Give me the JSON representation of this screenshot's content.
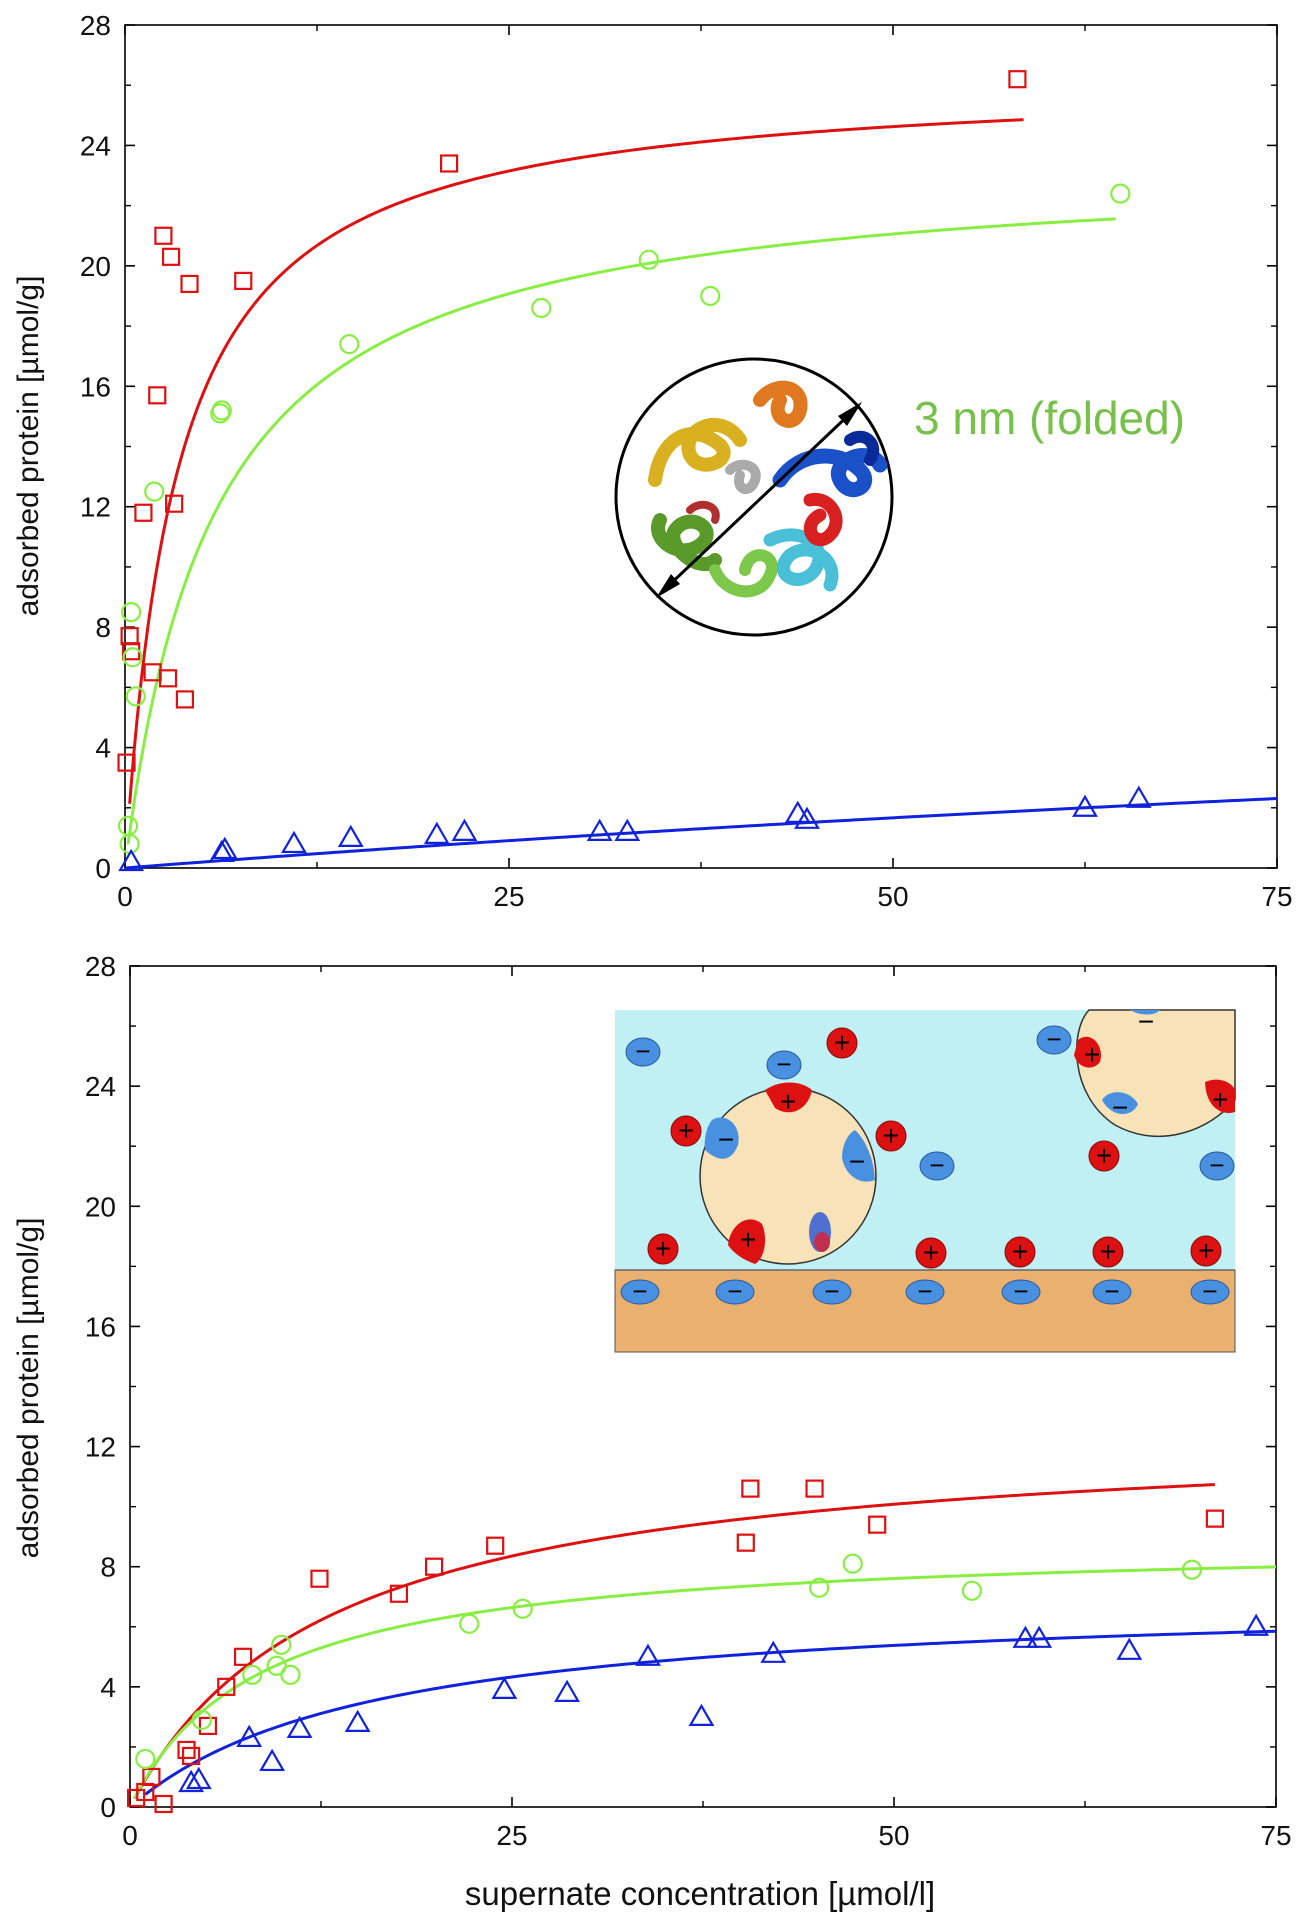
{
  "chart_data": [
    {
      "type": "scatter",
      "panel": "top",
      "ylabel": "adsorbed protein [µmol/g]",
      "xlabel": "",
      "xlim": [
        0,
        75
      ],
      "ylim": [
        0,
        28
      ],
      "xticks": [
        0,
        25,
        50,
        75
      ],
      "yticks": [
        0,
        4,
        8,
        12,
        16,
        20,
        24,
        28
      ],
      "grid": false,
      "series": [
        {
          "name": "red squares",
          "color": "#dd1111",
          "marker": "square",
          "points": [
            [
              0.1,
              3.5
            ],
            [
              0.3,
              7.7
            ],
            [
              0.4,
              7.2
            ],
            [
              1.2,
              11.8
            ],
            [
              1.8,
              6.5
            ],
            [
              2.1,
              15.7
            ],
            [
              2.5,
              21.0
            ],
            [
              2.8,
              6.3
            ],
            [
              3.0,
              20.3
            ],
            [
              3.2,
              12.1
            ],
            [
              3.9,
              5.6
            ],
            [
              4.2,
              19.4
            ],
            [
              7.7,
              19.5
            ],
            [
              21.1,
              23.4
            ],
            [
              58.1,
              26.2
            ]
          ],
          "fit": {
            "model": "langmuir",
            "qmax": 26.3,
            "K": 3.4,
            "x_range": [
              0.3,
              58.5
            ]
          }
        },
        {
          "name": "green circles",
          "color": "#88ee44",
          "marker": "circle",
          "points": [
            [
              0.2,
              1.4
            ],
            [
              0.3,
              0.8
            ],
            [
              0.4,
              8.5
            ],
            [
              0.5,
              7.0
            ],
            [
              0.7,
              5.7
            ],
            [
              1.9,
              12.5
            ],
            [
              6.2,
              15.1
            ],
            [
              6.3,
              15.2
            ],
            [
              14.6,
              17.4
            ],
            [
              27.1,
              18.6
            ],
            [
              34.1,
              20.2
            ],
            [
              38.1,
              19.0
            ],
            [
              64.8,
              22.4
            ]
          ],
          "fit": {
            "model": "langmuir",
            "qmax": 23.5,
            "K": 5.8,
            "x_range": [
              0.2,
              64.5
            ]
          }
        },
        {
          "name": "blue triangles",
          "color": "#1122dd",
          "marker": "triangle",
          "points": [
            [
              0.4,
              0.2
            ],
            [
              6.3,
              0.5
            ],
            [
              6.5,
              0.6
            ],
            [
              11.0,
              0.8
            ],
            [
              14.7,
              1.0
            ],
            [
              20.3,
              1.1
            ],
            [
              22.1,
              1.2
            ],
            [
              30.9,
              1.2
            ],
            [
              32.7,
              1.2
            ],
            [
              43.8,
              1.8
            ],
            [
              44.4,
              1.6
            ],
            [
              62.5,
              2.0
            ],
            [
              66.0,
              2.3
            ]
          ],
          "fit": {
            "model": "langmuir",
            "qmax": 10.0,
            "K": 250,
            "x_range": [
              0,
              75
            ]
          }
        }
      ],
      "annotation": {
        "text": "3 nm (folded)",
        "color": "#77c04a"
      }
    },
    {
      "type": "scatter",
      "panel": "bottom",
      "ylabel": "adsorbed protein [µmol/g]",
      "xlabel": "supernate concentration [µmol/l]",
      "xlim": [
        0,
        75
      ],
      "ylim": [
        0,
        28
      ],
      "xticks": [
        0,
        25,
        50,
        75
      ],
      "yticks": [
        0,
        4,
        8,
        12,
        16,
        20,
        24,
        28
      ],
      "grid": false,
      "series": [
        {
          "name": "red squares",
          "color": "#dd1111",
          "marker": "square",
          "points": [
            [
              0.4,
              0.3
            ],
            [
              1.0,
              0.5
            ],
            [
              1.4,
              1.0
            ],
            [
              2.2,
              0.1
            ],
            [
              3.7,
              1.9
            ],
            [
              4.0,
              1.7
            ],
            [
              5.1,
              2.7
            ],
            [
              6.3,
              4.0
            ],
            [
              7.4,
              5.0
            ],
            [
              12.4,
              7.6
            ],
            [
              17.6,
              7.1
            ],
            [
              19.9,
              8.0
            ],
            [
              23.9,
              8.7
            ],
            [
              40.3,
              8.8
            ],
            [
              40.6,
              10.6
            ],
            [
              44.8,
              10.6
            ],
            [
              48.9,
              9.4
            ],
            [
              71.0,
              9.6
            ]
          ],
          "fit": {
            "model": "langmuir",
            "qmax": 12.7,
            "K": 13.0,
            "x_range": [
              0.3,
              71.0
            ]
          }
        },
        {
          "name": "green circles",
          "color": "#88ee44",
          "marker": "circle",
          "points": [
            [
              1.0,
              1.6
            ],
            [
              4.7,
              2.9
            ],
            [
              8.0,
              4.4
            ],
            [
              9.6,
              4.7
            ],
            [
              9.9,
              5.4
            ],
            [
              10.5,
              4.4
            ],
            [
              22.2,
              6.1
            ],
            [
              25.7,
              6.6
            ],
            [
              45.1,
              7.3
            ],
            [
              47.3,
              8.1
            ],
            [
              55.1,
              7.2
            ],
            [
              69.5,
              7.9
            ]
          ],
          "fit": {
            "model": "langmuir",
            "qmax": 8.9,
            "K": 8.5,
            "x_range": [
              0.3,
              75
            ]
          }
        },
        {
          "name": "blue triangles",
          "color": "#1122dd",
          "marker": "triangle",
          "points": [
            [
              4.0,
              0.8
            ],
            [
              4.5,
              0.9
            ],
            [
              7.8,
              2.3
            ],
            [
              9.3,
              1.5
            ],
            [
              11.1,
              2.6
            ],
            [
              14.9,
              2.8
            ],
            [
              24.5,
              3.9
            ],
            [
              28.6,
              3.8
            ],
            [
              33.9,
              5.0
            ],
            [
              37.4,
              3.0
            ],
            [
              42.1,
              5.1
            ],
            [
              58.6,
              5.6
            ],
            [
              59.5,
              5.6
            ],
            [
              65.4,
              5.2
            ],
            [
              73.7,
              6.0
            ]
          ],
          "fit": {
            "model": "langmuir",
            "qmax": 7.1,
            "K": 16.0,
            "x_range": [
              1.0,
              75
            ]
          }
        }
      ],
      "annotation": {
        "text": "",
        "minus_sign": "−",
        "plus_sign": "+"
      }
    }
  ]
}
